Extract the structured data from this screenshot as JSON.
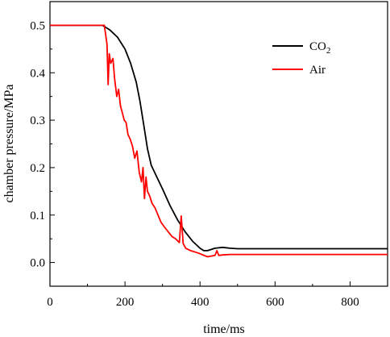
{
  "chart_data": {
    "type": "line",
    "xlabel": "time/ms",
    "ylabel": "chamber pressure/MPa",
    "xlim": [
      0,
      900
    ],
    "ylim": [
      -0.05,
      0.55
    ],
    "x_ticks": [
      0,
      200,
      400,
      600,
      800
    ],
    "y_ticks": [
      0.0,
      0.1,
      0.2,
      0.3,
      0.4,
      0.5
    ],
    "grid": false,
    "legend_position": "top-right",
    "series": [
      {
        "name": "CO2",
        "color": "#000000",
        "x": [
          0,
          140,
          160,
          180,
          200,
          215,
          230,
          240,
          250,
          260,
          270,
          285,
          300,
          320,
          340,
          360,
          380,
          400,
          410,
          420,
          440,
          460,
          480,
          500,
          600,
          700,
          800,
          900
        ],
        "y": [
          0.5,
          0.5,
          0.49,
          0.475,
          0.45,
          0.42,
          0.38,
          0.34,
          0.29,
          0.24,
          0.205,
          0.18,
          0.155,
          0.12,
          0.09,
          0.065,
          0.045,
          0.03,
          0.025,
          0.025,
          0.03,
          0.032,
          0.03,
          0.029,
          0.029,
          0.029,
          0.029,
          0.029
        ]
      },
      {
        "name": "Air",
        "color": "#ff0000",
        "x": [
          0,
          145,
          152,
          155,
          158,
          162,
          168,
          172,
          178,
          183,
          188,
          193,
          198,
          203,
          208,
          214,
          220,
          226,
          232,
          238,
          244,
          248,
          252,
          256,
          260,
          266,
          272,
          280,
          288,
          296,
          305,
          315,
          325,
          335,
          345,
          350,
          355,
          362,
          375,
          395,
          420,
          440,
          445,
          450,
          460,
          480,
          520,
          600,
          700,
          800,
          900
        ],
        "y": [
          0.5,
          0.5,
          0.46,
          0.375,
          0.44,
          0.42,
          0.43,
          0.39,
          0.35,
          0.365,
          0.33,
          0.315,
          0.3,
          0.295,
          0.27,
          0.26,
          0.245,
          0.22,
          0.235,
          0.19,
          0.17,
          0.2,
          0.135,
          0.18,
          0.15,
          0.14,
          0.125,
          0.115,
          0.1,
          0.085,
          0.075,
          0.065,
          0.055,
          0.05,
          0.042,
          0.098,
          0.04,
          0.03,
          0.025,
          0.02,
          0.012,
          0.015,
          0.025,
          0.015,
          0.016,
          0.017,
          0.017,
          0.017,
          0.017,
          0.017,
          0.017
        ]
      }
    ]
  },
  "legend": {
    "co2_base": "CO",
    "co2_sub": "2",
    "air": "Air"
  }
}
